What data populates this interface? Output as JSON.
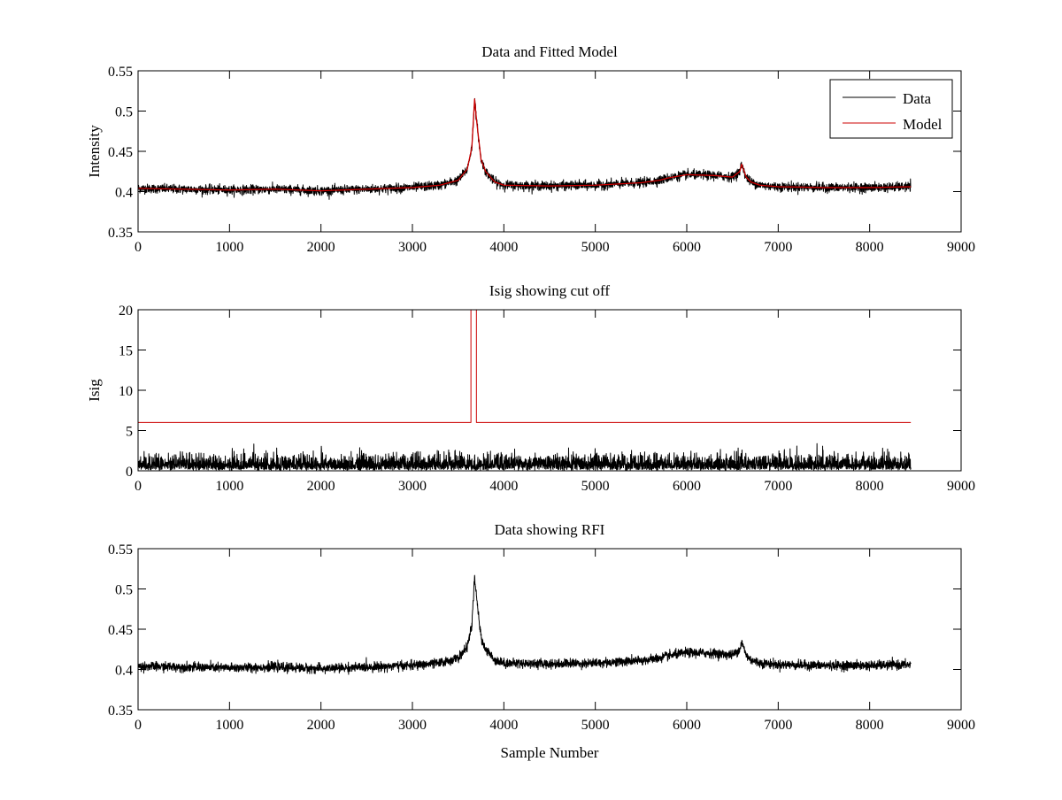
{
  "figure": {
    "background": "#ffffff"
  },
  "colors": {
    "data": "#000000",
    "model": "#cc0000",
    "axes": "#000000"
  },
  "chart_data": [
    {
      "type": "line",
      "title": "Data and Fitted Model",
      "xlabel": "",
      "ylabel": "Intensity",
      "xlim": [
        0,
        9000
      ],
      "ylim": [
        0.35,
        0.55
      ],
      "x_ticks": [
        0,
        1000,
        2000,
        3000,
        4000,
        5000,
        6000,
        7000,
        8000,
        9000
      ],
      "y_ticks": [
        0.35,
        0.4,
        0.45,
        0.5,
        0.55
      ],
      "x_tick_labels": [
        "0",
        "1000",
        "2000",
        "3000",
        "4000",
        "5000",
        "6000",
        "7000",
        "8000",
        "9000"
      ],
      "y_tick_labels": [
        "0.35",
        "0.4",
        "0.45",
        "0.5",
        "0.55"
      ],
      "grid": false,
      "legend": {
        "placement": "top-right",
        "entries": [
          "Data",
          "Model"
        ]
      },
      "series": [
        {
          "name": "Data",
          "color": "#000000",
          "kind": "noisy",
          "noise_amplitude": 0.005,
          "x": [
            0,
            500,
            1000,
            1500,
            2000,
            2500,
            3000,
            3300,
            3500,
            3600,
            3650,
            3680,
            3700,
            3750,
            3800,
            3900,
            4000,
            4500,
            5000,
            5500,
            5700,
            5800,
            6000,
            6300,
            6500,
            6580,
            6600,
            6650,
            6700,
            6800,
            7000,
            7500,
            8000,
            8450
          ],
          "values": [
            0.404,
            0.403,
            0.402,
            0.403,
            0.401,
            0.403,
            0.405,
            0.408,
            0.414,
            0.428,
            0.455,
            0.515,
            0.49,
            0.44,
            0.425,
            0.412,
            0.408,
            0.407,
            0.408,
            0.411,
            0.414,
            0.417,
            0.421,
            0.42,
            0.418,
            0.425,
            0.434,
            0.418,
            0.412,
            0.408,
            0.406,
            0.405,
            0.405,
            0.406
          ]
        },
        {
          "name": "Model",
          "color": "#cc0000",
          "kind": "smooth",
          "x": [
            0,
            500,
            1000,
            1500,
            2000,
            2500,
            3000,
            3300,
            3500,
            3600,
            3650,
            3680,
            3700,
            3750,
            3800,
            3900,
            4000,
            4500,
            5000,
            5500,
            5700,
            5800,
            6000,
            6300,
            6500,
            6580,
            6600,
            6650,
            6700,
            6800,
            7000,
            7500,
            8000,
            8450
          ],
          "values": [
            0.404,
            0.403,
            0.402,
            0.403,
            0.401,
            0.403,
            0.405,
            0.408,
            0.414,
            0.428,
            0.455,
            0.515,
            0.49,
            0.44,
            0.425,
            0.412,
            0.408,
            0.407,
            0.408,
            0.411,
            0.414,
            0.417,
            0.421,
            0.42,
            0.418,
            0.425,
            0.434,
            0.418,
            0.412,
            0.408,
            0.406,
            0.405,
            0.405,
            0.406
          ]
        }
      ]
    },
    {
      "type": "line",
      "title": "Isig showing cut off",
      "xlabel": "",
      "ylabel": "Isig",
      "xlim": [
        0,
        9000
      ],
      "ylim": [
        0,
        20
      ],
      "x_ticks": [
        0,
        1000,
        2000,
        3000,
        4000,
        5000,
        6000,
        7000,
        8000,
        9000
      ],
      "y_ticks": [
        0,
        5,
        10,
        15,
        20
      ],
      "x_tick_labels": [
        "0",
        "1000",
        "2000",
        "3000",
        "4000",
        "5000",
        "6000",
        "7000",
        "8000",
        "9000"
      ],
      "y_tick_labels": [
        "0",
        "5",
        "10",
        "15",
        "20"
      ],
      "grid": false,
      "series": [
        {
          "color": "#000000",
          "kind": "abs-noise",
          "noise_amplitude": 1.6,
          "x": [
            0,
            8450
          ],
          "values": [
            0.9,
            0.9
          ]
        },
        {
          "color": "#cc0000",
          "kind": "step",
          "x": [
            0,
            3640,
            3640,
            3700,
            3700,
            8450
          ],
          "values": [
            6,
            6,
            21,
            21,
            6,
            6
          ]
        }
      ]
    },
    {
      "type": "line",
      "title": "Data showing RFI",
      "xlabel": "Sample Number",
      "ylabel": "",
      "xlim": [
        0,
        9000
      ],
      "ylim": [
        0.35,
        0.55
      ],
      "x_ticks": [
        0,
        1000,
        2000,
        3000,
        4000,
        5000,
        6000,
        7000,
        8000,
        9000
      ],
      "y_ticks": [
        0.35,
        0.4,
        0.45,
        0.5,
        0.55
      ],
      "x_tick_labels": [
        "0",
        "1000",
        "2000",
        "3000",
        "4000",
        "5000",
        "6000",
        "7000",
        "8000",
        "9000"
      ],
      "y_tick_labels": [
        "0.35",
        "0.4",
        "0.45",
        "0.5",
        "0.55"
      ],
      "grid": false,
      "series": [
        {
          "color": "#000000",
          "kind": "noisy",
          "noise_amplitude": 0.005,
          "x": [
            0,
            500,
            1000,
            1500,
            2000,
            2500,
            3000,
            3300,
            3500,
            3600,
            3650,
            3680,
            3700,
            3750,
            3800,
            3900,
            4000,
            4500,
            5000,
            5500,
            5700,
            5800,
            6000,
            6300,
            6500,
            6580,
            6600,
            6650,
            6700,
            6800,
            7000,
            7500,
            8000,
            8450
          ],
          "values": [
            0.404,
            0.403,
            0.402,
            0.403,
            0.401,
            0.403,
            0.405,
            0.408,
            0.414,
            0.428,
            0.455,
            0.515,
            0.49,
            0.44,
            0.425,
            0.412,
            0.408,
            0.407,
            0.408,
            0.411,
            0.414,
            0.417,
            0.421,
            0.42,
            0.418,
            0.425,
            0.434,
            0.418,
            0.412,
            0.408,
            0.406,
            0.405,
            0.405,
            0.406
          ]
        }
      ]
    }
  ]
}
